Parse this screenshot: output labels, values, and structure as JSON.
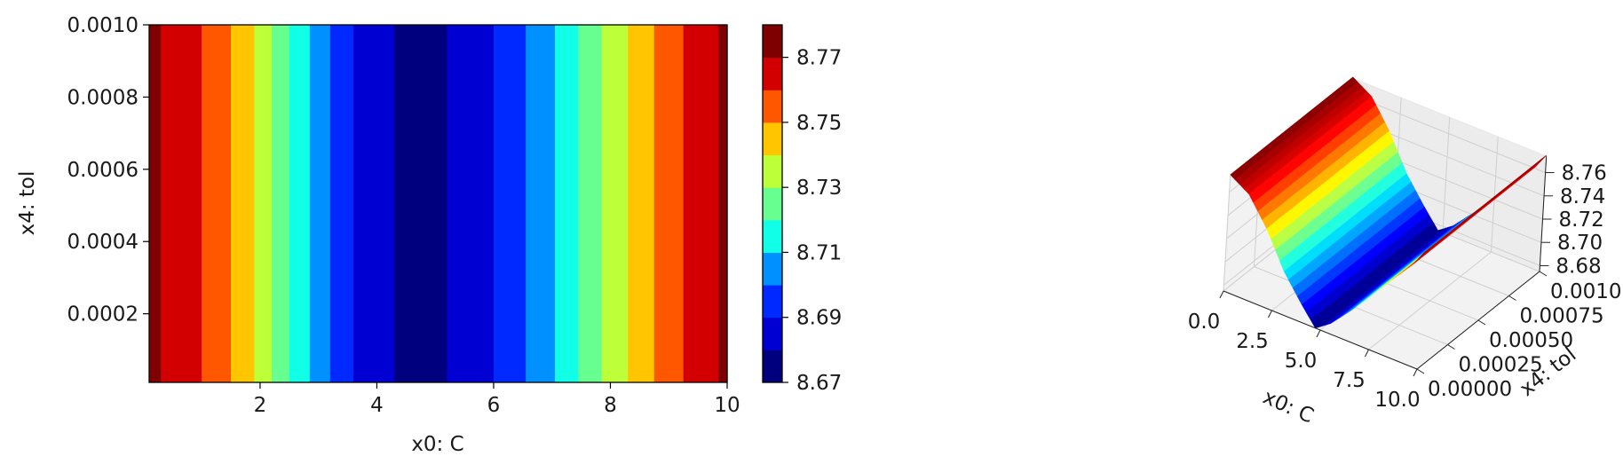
{
  "chart_data": [
    {
      "type": "heatmap",
      "subtype": "filled-contour",
      "xlabel": "x0: C",
      "ylabel": "x4: tol",
      "xlim": [
        0.1,
        10
      ],
      "ylim": [
        1e-05,
        0.001
      ],
      "x_ticks": [
        "2",
        "4",
        "6",
        "8",
        "10"
      ],
      "y_ticks": [
        "0.0002",
        "0.0004",
        "0.0006",
        "0.0008",
        "0.0010"
      ],
      "colormap": "jet",
      "z_description": "z depends only on x0 (constant along x4)",
      "contour_levels": [
        8.67,
        8.68,
        8.69,
        8.7,
        8.71,
        8.72,
        8.73,
        8.74,
        8.75,
        8.76,
        8.77,
        8.78
      ],
      "level_colors": [
        "#00007f",
        "#0000d2",
        "#0029ff",
        "#0090ff",
        "#10ffe6",
        "#67ff8f",
        "#bdff39",
        "#ffc600",
        "#ff5700",
        "#d20000",
        "#7f0000"
      ],
      "bands": [
        {
          "x0": 0.1,
          "x1": 0.3,
          "level": 10
        },
        {
          "x0": 0.3,
          "x1": 1.0,
          "level": 9
        },
        {
          "x0": 1.0,
          "x1": 1.5,
          "level": 8
        },
        {
          "x0": 1.5,
          "x1": 1.9,
          "level": 7
        },
        {
          "x0": 1.9,
          "x1": 2.2,
          "level": 6
        },
        {
          "x0": 2.2,
          "x1": 2.5,
          "level": 5
        },
        {
          "x0": 2.5,
          "x1": 2.85,
          "level": 4
        },
        {
          "x0": 2.85,
          "x1": 3.2,
          "level": 3
        },
        {
          "x0": 3.2,
          "x1": 3.6,
          "level": 2
        },
        {
          "x0": 3.6,
          "x1": 4.3,
          "level": 1
        },
        {
          "x0": 4.3,
          "x1": 5.2,
          "level": 0
        },
        {
          "x0": 5.2,
          "x1": 6.0,
          "level": 1
        },
        {
          "x0": 6.0,
          "x1": 6.55,
          "level": 2
        },
        {
          "x0": 6.55,
          "x1": 7.05,
          "level": 3
        },
        {
          "x0": 7.05,
          "x1": 7.45,
          "level": 4
        },
        {
          "x0": 7.45,
          "x1": 7.85,
          "level": 5
        },
        {
          "x0": 7.85,
          "x1": 8.3,
          "level": 6
        },
        {
          "x0": 8.3,
          "x1": 8.75,
          "level": 7
        },
        {
          "x0": 8.75,
          "x1": 9.25,
          "level": 8
        },
        {
          "x0": 9.25,
          "x1": 9.85,
          "level": 9
        },
        {
          "x0": 9.85,
          "x1": 10.0,
          "level": 10
        }
      ],
      "colorbar": {
        "tick_labels": [
          "8.67",
          "8.69",
          "8.71",
          "8.73",
          "8.75",
          "8.77"
        ],
        "tick_values": [
          8.67,
          8.69,
          8.71,
          8.73,
          8.75,
          8.77
        ]
      }
    },
    {
      "type": "surface3d",
      "colormap": "jet",
      "xlabel": "x0: C",
      "ylabel": "x4: tol",
      "x_ticks": [
        "0.0",
        "2.5",
        "5.0",
        "7.5",
        "10.0"
      ],
      "y_ticks": [
        "0.00000",
        "0.00025",
        "0.00050",
        "0.00075",
        "0.00100"
      ],
      "z_ticks": [
        "8.68",
        "8.70",
        "8.72",
        "8.74",
        "8.76"
      ],
      "xlim": [
        0,
        10
      ],
      "ylim": [
        0,
        0.001
      ],
      "zlim": [
        8.675,
        8.765
      ],
      "grid": true,
      "profile_x": [
        0.0,
        1.0,
        2.0,
        3.0,
        4.0,
        4.75,
        5.5,
        6.5,
        7.5,
        8.5,
        9.5,
        10.0
      ],
      "profile_z": [
        8.775,
        8.765,
        8.742,
        8.712,
        8.69,
        8.675,
        8.684,
        8.702,
        8.722,
        8.742,
        8.762,
        8.775
      ]
    }
  ]
}
